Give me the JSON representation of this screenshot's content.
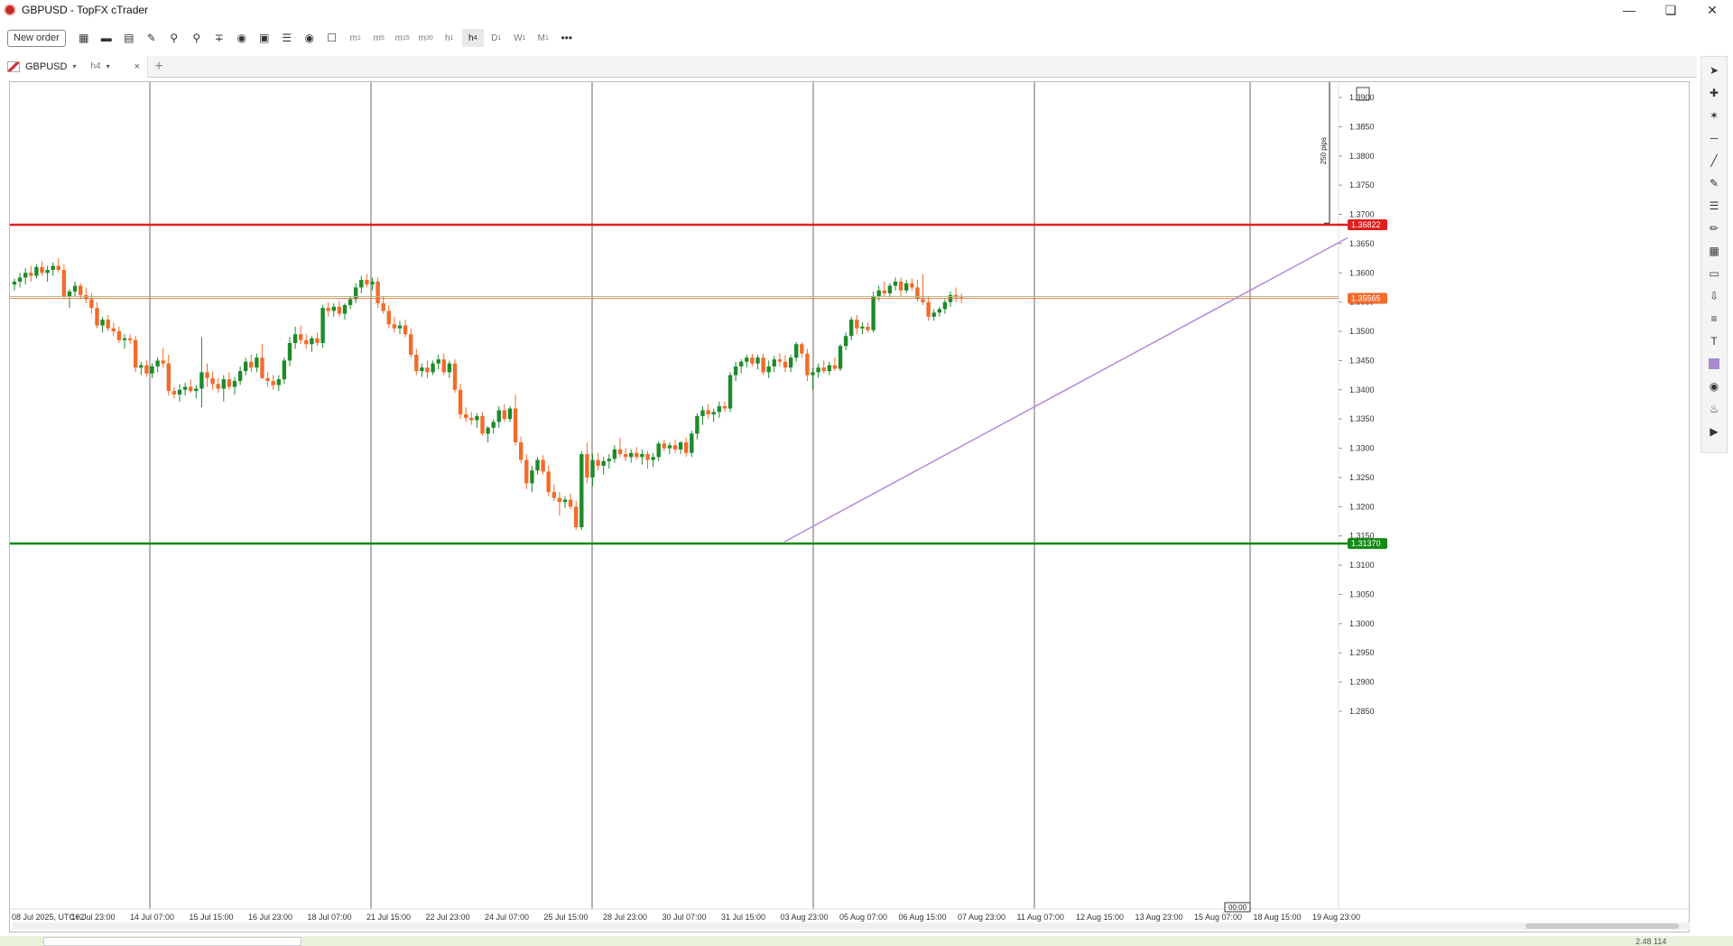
{
  "window": {
    "title": "GBPUSD - TopFX cTrader",
    "minimize_icon": "minimize-icon",
    "restore_icon": "restore-icon",
    "close_icon": "close-icon"
  },
  "toolbar": {
    "new_order_label": "New order",
    "icons": [
      "layout-grid-icon",
      "single-chart-icon",
      "split-chart-icon",
      "edit-chart-icon",
      "zoom-in-icon",
      "zoom-out-icon",
      "indicators-icon",
      "sentiment-icon",
      "robot-icon",
      "layers-icon",
      "eye-icon",
      "template-icon"
    ],
    "timeframes": [
      {
        "label": "m",
        "sub": "1"
      },
      {
        "label": "m",
        "sub": "5"
      },
      {
        "label": "m",
        "sub": "15"
      },
      {
        "label": "m",
        "sub": "30"
      },
      {
        "label": "h",
        "sub": "1"
      },
      {
        "label": "h",
        "sub": "4"
      },
      {
        "label": "D",
        "sub": "1"
      },
      {
        "label": "W",
        "sub": "1"
      },
      {
        "label": "M",
        "sub": "1"
      }
    ],
    "active_timeframe_index": 5,
    "more_label": "•••"
  },
  "tab": {
    "symbol": "GBPUSD",
    "timeframe": "h4",
    "caret": "▾",
    "close": "×",
    "add": "+"
  },
  "chart_data": {
    "type": "candlestick",
    "symbol": "GBPUSD",
    "timeframe": "h4",
    "timezone_label": "08 Jul 2025, UTC+2",
    "ylim": [
      1.2825,
      1.398
    ],
    "y_ticks": [
      "1.3900",
      "1.3850",
      "1.3800",
      "1.3750",
      "1.3700",
      "1.3650",
      "1.3600",
      "1.3550",
      "1.3500",
      "1.3450",
      "1.3400",
      "1.3350",
      "1.3300",
      "1.3250",
      "1.3200",
      "1.3150",
      "1.3100",
      "1.3050",
      "1.3000",
      "1.2950",
      "1.2900",
      "1.2850"
    ],
    "x_labels": [
      "08 Jul 2025, UTC+2",
      "10 Jul 23:00",
      "14 Jul 07:00",
      "15 Jul 15:00",
      "16 Jul 23:00",
      "18 Jul 07:00",
      "21 Jul 15:00",
      "22 Jul 23:00",
      "24 Jul 07:00",
      "25 Jul 15:00",
      "28 Jul 23:00",
      "30 Jul 07:00",
      "31 Jul 15:00",
      "03 Aug 23:00",
      "05 Aug 07:00",
      "06 Aug 15:00",
      "07 Aug 23:00",
      "11 Aug 07:00",
      "12 Aug 15:00",
      "13 Aug 23:00",
      "15 Aug 07:00",
      "18 Aug 15:00",
      "19 Aug 23:00"
    ],
    "current_time_label": "00:00",
    "resistance": {
      "price": 1.36822,
      "label": "1.36822",
      "color": "#e01e1e"
    },
    "support": {
      "price": 1.3137,
      "label": "1.31370",
      "color": "#158a15"
    },
    "current_price": {
      "price": 1.35565,
      "label": "1.35565",
      "color": "#f26b2b"
    },
    "trendline": {
      "from_price": 1.314,
      "to_price": 1.366,
      "color": "#b98fd6"
    },
    "measure": {
      "label": "250 pips",
      "from": 1.3685,
      "to": 1.3935
    },
    "up_color": "#1e8a2a",
    "down_color": "#f26b2b",
    "candles": [
      [
        1.358,
        1.359,
        1.357,
        1.3585
      ],
      [
        1.3585,
        1.36,
        1.3575,
        1.3592
      ],
      [
        1.3592,
        1.3608,
        1.358,
        1.36
      ],
      [
        1.36,
        1.3612,
        1.3585,
        1.3595
      ],
      [
        1.3595,
        1.3615,
        1.359,
        1.361
      ],
      [
        1.361,
        1.362,
        1.3595,
        1.36
      ],
      [
        1.36,
        1.3612,
        1.3585,
        1.3605
      ],
      [
        1.3605,
        1.3618,
        1.3595,
        1.3612
      ],
      [
        1.3612,
        1.3625,
        1.36,
        1.3605
      ],
      [
        1.3605,
        1.3615,
        1.3555,
        1.356
      ],
      [
        1.356,
        1.3572,
        1.354,
        1.3568
      ],
      [
        1.3568,
        1.3585,
        1.356,
        1.3578
      ],
      [
        1.3578,
        1.3582,
        1.3555,
        1.3562
      ],
      [
        1.3562,
        1.3575,
        1.3548,
        1.3555
      ],
      [
        1.3555,
        1.3565,
        1.353,
        1.354
      ],
      [
        1.354,
        1.355,
        1.3505,
        1.351
      ],
      [
        1.351,
        1.3525,
        1.3498,
        1.352
      ],
      [
        1.352,
        1.3528,
        1.35,
        1.3505
      ],
      [
        1.3505,
        1.3515,
        1.3492,
        1.35
      ],
      [
        1.35,
        1.3508,
        1.348,
        1.3485
      ],
      [
        1.3485,
        1.3495,
        1.347,
        1.3488
      ],
      [
        1.3488,
        1.3495,
        1.3478,
        1.3485
      ],
      [
        1.3485,
        1.3492,
        1.343,
        1.3438
      ],
      [
        1.3438,
        1.3448,
        1.3425,
        1.3442
      ],
      [
        1.3442,
        1.345,
        1.3422,
        1.3428
      ],
      [
        1.3428,
        1.3445,
        1.342,
        1.344
      ],
      [
        1.344,
        1.3455,
        1.343,
        1.345
      ],
      [
        1.345,
        1.3472,
        1.3438,
        1.3445
      ],
      [
        1.3445,
        1.346,
        1.339,
        1.3398
      ],
      [
        1.3398,
        1.3405,
        1.3385,
        1.3392
      ],
      [
        1.3392,
        1.341,
        1.338,
        1.34
      ],
      [
        1.34,
        1.3412,
        1.339,
        1.3405
      ],
      [
        1.3405,
        1.3418,
        1.3395,
        1.3398
      ],
      [
        1.3398,
        1.3408,
        1.3385,
        1.3402
      ],
      [
        1.3402,
        1.349,
        1.337,
        1.343
      ],
      [
        1.343,
        1.3445,
        1.3405,
        1.342
      ],
      [
        1.342,
        1.3432,
        1.34,
        1.341
      ],
      [
        1.341,
        1.342,
        1.3395,
        1.3402
      ],
      [
        1.3402,
        1.3425,
        1.338,
        1.3418
      ],
      [
        1.3418,
        1.343,
        1.34,
        1.3405
      ],
      [
        1.3405,
        1.3422,
        1.3392,
        1.3415
      ],
      [
        1.3415,
        1.344,
        1.3408,
        1.3432
      ],
      [
        1.3432,
        1.3455,
        1.3425,
        1.3448
      ],
      [
        1.3448,
        1.346,
        1.343,
        1.3438
      ],
      [
        1.3438,
        1.3462,
        1.343,
        1.3455
      ],
      [
        1.3455,
        1.3478,
        1.3418,
        1.342
      ],
      [
        1.342,
        1.343,
        1.3405,
        1.3415
      ],
      [
        1.3415,
        1.3425,
        1.34,
        1.3408
      ],
      [
        1.3408,
        1.3425,
        1.3398,
        1.3418
      ],
      [
        1.3418,
        1.3455,
        1.341,
        1.345
      ],
      [
        1.345,
        1.349,
        1.344,
        1.348
      ],
      [
        1.348,
        1.3508,
        1.347,
        1.3495
      ],
      [
        1.3495,
        1.351,
        1.3478,
        1.3485
      ],
      [
        1.3485,
        1.3495,
        1.347,
        1.3478
      ],
      [
        1.3478,
        1.3492,
        1.3465,
        1.3488
      ],
      [
        1.3488,
        1.3498,
        1.3475,
        1.348
      ],
      [
        1.348,
        1.3545,
        1.3472,
        1.354
      ],
      [
        1.354,
        1.355,
        1.3525,
        1.3535
      ],
      [
        1.3535,
        1.3548,
        1.3525,
        1.3542
      ],
      [
        1.3542,
        1.3552,
        1.3525,
        1.353
      ],
      [
        1.353,
        1.3548,
        1.352,
        1.3545
      ],
      [
        1.3545,
        1.356,
        1.3538,
        1.3555
      ],
      [
        1.3555,
        1.3582,
        1.3548,
        1.3575
      ],
      [
        1.3575,
        1.3595,
        1.3565,
        1.3588
      ],
      [
        1.3588,
        1.3598,
        1.3575,
        1.358
      ],
      [
        1.358,
        1.3592,
        1.357,
        1.3585
      ],
      [
        1.3585,
        1.3592,
        1.354,
        1.3548
      ],
      [
        1.3548,
        1.356,
        1.353,
        1.3535
      ],
      [
        1.3535,
        1.3545,
        1.3505,
        1.3512
      ],
      [
        1.3512,
        1.3525,
        1.3498,
        1.3505
      ],
      [
        1.3505,
        1.3518,
        1.3495,
        1.351
      ],
      [
        1.351,
        1.352,
        1.349,
        1.3495
      ],
      [
        1.3495,
        1.3505,
        1.3455,
        1.346
      ],
      [
        1.346,
        1.347,
        1.3425,
        1.3432
      ],
      [
        1.3432,
        1.3445,
        1.3422,
        1.3438
      ],
      [
        1.3438,
        1.345,
        1.342,
        1.343
      ],
      [
        1.343,
        1.345,
        1.3425,
        1.3445
      ],
      [
        1.3445,
        1.346,
        1.3435,
        1.3452
      ],
      [
        1.3452,
        1.3462,
        1.3425,
        1.343
      ],
      [
        1.343,
        1.345,
        1.342,
        1.3445
      ],
      [
        1.3445,
        1.3452,
        1.3395,
        1.34
      ],
      [
        1.34,
        1.341,
        1.335,
        1.3358
      ],
      [
        1.3358,
        1.337,
        1.3345,
        1.3352
      ],
      [
        1.3352,
        1.3362,
        1.334,
        1.3348
      ],
      [
        1.3348,
        1.336,
        1.3335,
        1.3355
      ],
      [
        1.3355,
        1.3362,
        1.3322,
        1.3325
      ],
      [
        1.3325,
        1.3338,
        1.331,
        1.3335
      ],
      [
        1.3335,
        1.335,
        1.3325,
        1.3345
      ],
      [
        1.3345,
        1.3372,
        1.3335,
        1.3365
      ],
      [
        1.3365,
        1.3375,
        1.3345,
        1.335
      ],
      [
        1.335,
        1.3372,
        1.3345,
        1.3368
      ],
      [
        1.3368,
        1.3392,
        1.3305,
        1.331
      ],
      [
        1.331,
        1.332,
        1.3275,
        1.328
      ],
      [
        1.328,
        1.329,
        1.323,
        1.324
      ],
      [
        1.324,
        1.327,
        1.3225,
        1.3262
      ],
      [
        1.3262,
        1.3285,
        1.3255,
        1.328
      ],
      [
        1.328,
        1.3288,
        1.3255,
        1.326
      ],
      [
        1.326,
        1.327,
        1.3218,
        1.3225
      ],
      [
        1.3225,
        1.3238,
        1.321,
        1.3215
      ],
      [
        1.3215,
        1.3225,
        1.3185,
        1.3208
      ],
      [
        1.3208,
        1.3218,
        1.3198,
        1.3212
      ],
      [
        1.3212,
        1.3222,
        1.3195,
        1.32
      ],
      [
        1.32,
        1.321,
        1.316,
        1.3165
      ],
      [
        1.3165,
        1.3295,
        1.316,
        1.329
      ],
      [
        1.329,
        1.331,
        1.324,
        1.325
      ],
      [
        1.325,
        1.329,
        1.3235,
        1.328
      ],
      [
        1.328,
        1.3292,
        1.3262,
        1.327
      ],
      [
        1.327,
        1.3285,
        1.3255,
        1.3278
      ],
      [
        1.3278,
        1.329,
        1.3265,
        1.3282
      ],
      [
        1.3282,
        1.3305,
        1.3275,
        1.3298
      ],
      [
        1.3298,
        1.3318,
        1.3285,
        1.329
      ],
      [
        1.329,
        1.33,
        1.3278,
        1.3285
      ],
      [
        1.3285,
        1.3298,
        1.3275,
        1.3292
      ],
      [
        1.3292,
        1.3302,
        1.328,
        1.3285
      ],
      [
        1.3285,
        1.3298,
        1.3272,
        1.329
      ],
      [
        1.329,
        1.3295,
        1.3265,
        1.328
      ],
      [
        1.328,
        1.3292,
        1.3268,
        1.3285
      ],
      [
        1.3285,
        1.3312,
        1.3278,
        1.3308
      ],
      [
        1.3308,
        1.3315,
        1.3295,
        1.33
      ],
      [
        1.33,
        1.331,
        1.329,
        1.3305
      ],
      [
        1.3305,
        1.3315,
        1.3292,
        1.3298
      ],
      [
        1.3298,
        1.3312,
        1.329,
        1.331
      ],
      [
        1.331,
        1.3318,
        1.3285,
        1.3292
      ],
      [
        1.3292,
        1.333,
        1.3285,
        1.3325
      ],
      [
        1.3325,
        1.336,
        1.3315,
        1.3355
      ],
      [
        1.3355,
        1.3372,
        1.334,
        1.3365
      ],
      [
        1.3365,
        1.3375,
        1.335,
        1.3358
      ],
      [
        1.3358,
        1.3368,
        1.3345,
        1.3362
      ],
      [
        1.3362,
        1.338,
        1.3352,
        1.3372
      ],
      [
        1.3372,
        1.338,
        1.3362,
        1.3368
      ],
      [
        1.3368,
        1.343,
        1.3362,
        1.3425
      ],
      [
        1.3425,
        1.3448,
        1.3415,
        1.344
      ],
      [
        1.344,
        1.3452,
        1.3428,
        1.3448
      ],
      [
        1.3448,
        1.346,
        1.3438,
        1.3455
      ],
      [
        1.3455,
        1.3462,
        1.344,
        1.3445
      ],
      [
        1.3445,
        1.346,
        1.3435,
        1.3455
      ],
      [
        1.3455,
        1.3462,
        1.3425,
        1.343
      ],
      [
        1.343,
        1.345,
        1.342,
        1.344
      ],
      [
        1.344,
        1.3458,
        1.343,
        1.3452
      ],
      [
        1.3452,
        1.3462,
        1.344,
        1.3448
      ],
      [
        1.3448,
        1.346,
        1.343,
        1.3438
      ],
      [
        1.3438,
        1.346,
        1.343,
        1.3455
      ],
      [
        1.3455,
        1.3482,
        1.3448,
        1.3478
      ],
      [
        1.3478,
        1.3482,
        1.3455,
        1.3462
      ],
      [
        1.3462,
        1.347,
        1.3415,
        1.3425
      ],
      [
        1.3425,
        1.3438,
        1.34,
        1.343
      ],
      [
        1.343,
        1.3445,
        1.342,
        1.3438
      ],
      [
        1.3438,
        1.345,
        1.3428,
        1.3432
      ],
      [
        1.3432,
        1.3448,
        1.3425,
        1.3442
      ],
      [
        1.3442,
        1.3455,
        1.3432,
        1.3436
      ],
      [
        1.3436,
        1.3478,
        1.3432,
        1.3475
      ],
      [
        1.3475,
        1.3498,
        1.3468,
        1.3492
      ],
      [
        1.3492,
        1.3525,
        1.3485,
        1.352
      ],
      [
        1.352,
        1.3528,
        1.3495,
        1.3505
      ],
      [
        1.3505,
        1.3515,
        1.3495,
        1.3508
      ],
      [
        1.3508,
        1.3515,
        1.3498,
        1.3502
      ],
      [
        1.3502,
        1.3568,
        1.3498,
        1.356
      ],
      [
        1.356,
        1.3578,
        1.3552,
        1.357
      ],
      [
        1.357,
        1.3585,
        1.356,
        1.3565
      ],
      [
        1.3565,
        1.3582,
        1.3558,
        1.3578
      ],
      [
        1.3578,
        1.3592,
        1.357,
        1.3585
      ],
      [
        1.3585,
        1.3592,
        1.356,
        1.357
      ],
      [
        1.357,
        1.3588,
        1.3565,
        1.3582
      ],
      [
        1.3582,
        1.359,
        1.357,
        1.3575
      ],
      [
        1.3575,
        1.3588,
        1.355,
        1.3555
      ],
      [
        1.3555,
        1.3598,
        1.3545,
        1.355
      ],
      [
        1.355,
        1.356,
        1.3518,
        1.3525
      ],
      [
        1.3525,
        1.3538,
        1.3518,
        1.3532
      ],
      [
        1.3532,
        1.3542,
        1.3525,
        1.3538
      ],
      [
        1.3538,
        1.3555,
        1.353,
        1.355
      ],
      [
        1.355,
        1.3568,
        1.3542,
        1.3562
      ],
      [
        1.3562,
        1.3575,
        1.355,
        1.3558
      ],
      [
        1.3558,
        1.3565,
        1.3548,
        1.3556
      ]
    ]
  },
  "right_toolbar": {
    "icons": [
      "cursor-icon",
      "crosshair-icon",
      "magnet-icon",
      "horizontal-line-icon",
      "trend-line-icon",
      "pen-icon",
      "fib-icon",
      "brush-icon",
      "grid-icon",
      "rectangle-icon",
      "arrow-down-icon",
      "channel-icon",
      "text-icon",
      "color-swatch-icon",
      "camera-icon",
      "alert-bell-icon",
      "replay-icon"
    ]
  },
  "statusbar": {
    "value": "2.48 114"
  }
}
